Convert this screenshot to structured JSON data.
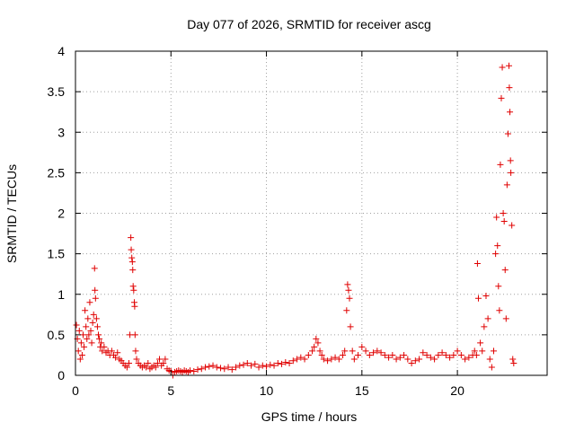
{
  "chart_data": {
    "type": "scatter",
    "title": "Day 077 of 2026, SRMTID for receiver ascg",
    "xlabel": "GPS time / hours",
    "ylabel": "SRMTID / TECUs",
    "xlim": [
      0,
      24.7
    ],
    "ylim": [
      0,
      4
    ],
    "xticks": [
      0,
      5,
      10,
      15,
      20
    ],
    "xtick_labels": [
      "0",
      "5",
      "10",
      "15",
      "20"
    ],
    "yticks": [
      0,
      0.5,
      1,
      1.5,
      2,
      2.5,
      3,
      3.5,
      4
    ],
    "ytick_labels": [
      "0",
      "0.5",
      "1",
      "1.5",
      "2",
      "2.5",
      "3",
      "3.5",
      "4"
    ],
    "grid": true,
    "marker": "+",
    "color": "#e00000",
    "series": [
      {
        "name": "ascg",
        "points": [
          [
            0.05,
            0.62
          ],
          [
            0.1,
            0.45
          ],
          [
            0.15,
            0.3
          ],
          [
            0.2,
            0.55
          ],
          [
            0.25,
            0.2
          ],
          [
            0.3,
            0.4
          ],
          [
            0.35,
            0.25
          ],
          [
            0.4,
            0.5
          ],
          [
            0.45,
            0.35
          ],
          [
            0.5,
            0.8
          ],
          [
            0.55,
            0.6
          ],
          [
            0.6,
            0.45
          ],
          [
            0.65,
            0.7
          ],
          [
            0.7,
            0.5
          ],
          [
            0.75,
            0.9
          ],
          [
            0.8,
            0.55
          ],
          [
            0.85,
            0.4
          ],
          [
            0.9,
            0.65
          ],
          [
            0.95,
            0.75
          ],
          [
            1.0,
            1.32
          ],
          [
            1.02,
            1.05
          ],
          [
            1.05,
            0.95
          ],
          [
            1.1,
            0.7
          ],
          [
            1.15,
            0.6
          ],
          [
            1.2,
            0.5
          ],
          [
            1.25,
            0.45
          ],
          [
            1.3,
            0.35
          ],
          [
            1.35,
            0.4
          ],
          [
            1.4,
            0.3
          ],
          [
            1.5,
            0.35
          ],
          [
            1.6,
            0.28
          ],
          [
            1.7,
            0.3
          ],
          [
            1.8,
            0.25
          ],
          [
            1.9,
            0.3
          ],
          [
            2.0,
            0.25
          ],
          [
            2.1,
            0.22
          ],
          [
            2.2,
            0.28
          ],
          [
            2.3,
            0.2
          ],
          [
            2.4,
            0.18
          ],
          [
            2.5,
            0.15
          ],
          [
            2.6,
            0.12
          ],
          [
            2.7,
            0.1
          ],
          [
            2.8,
            0.15
          ],
          [
            2.85,
            0.5
          ],
          [
            2.9,
            1.7
          ],
          [
            2.92,
            1.55
          ],
          [
            2.95,
            1.45
          ],
          [
            2.98,
            1.4
          ],
          [
            3.0,
            1.3
          ],
          [
            3.02,
            1.1
          ],
          [
            3.05,
            1.05
          ],
          [
            3.08,
            0.9
          ],
          [
            3.1,
            0.85
          ],
          [
            3.12,
            0.5
          ],
          [
            3.15,
            0.3
          ],
          [
            3.2,
            0.2
          ],
          [
            3.3,
            0.15
          ],
          [
            3.4,
            0.12
          ],
          [
            3.5,
            0.1
          ],
          [
            3.6,
            0.12
          ],
          [
            3.7,
            0.1
          ],
          [
            3.8,
            0.15
          ],
          [
            3.9,
            0.08
          ],
          [
            4.0,
            0.1
          ],
          [
            4.1,
            0.12
          ],
          [
            4.2,
            0.1
          ],
          [
            4.3,
            0.15
          ],
          [
            4.4,
            0.2
          ],
          [
            4.5,
            0.12
          ],
          [
            4.6,
            0.15
          ],
          [
            4.7,
            0.2
          ],
          [
            4.8,
            0.08
          ],
          [
            4.9,
            0.06
          ],
          [
            5.0,
            0.05
          ],
          [
            5.1,
            0.0
          ],
          [
            5.2,
            0.04
          ],
          [
            5.3,
            0.05
          ],
          [
            5.4,
            0.06
          ],
          [
            5.5,
            0.05
          ],
          [
            5.6,
            0.04
          ],
          [
            5.7,
            0.06
          ],
          [
            5.8,
            0.05
          ],
          [
            5.9,
            0.04
          ],
          [
            6.0,
            0.06
          ],
          [
            6.2,
            0.05
          ],
          [
            6.4,
            0.07
          ],
          [
            6.6,
            0.08
          ],
          [
            6.8,
            0.1
          ],
          [
            7.0,
            0.11
          ],
          [
            7.2,
            0.12
          ],
          [
            7.4,
            0.1
          ],
          [
            7.6,
            0.09
          ],
          [
            7.8,
            0.08
          ],
          [
            8.0,
            0.1
          ],
          [
            8.2,
            0.07
          ],
          [
            8.4,
            0.1
          ],
          [
            8.6,
            0.12
          ],
          [
            8.8,
            0.13
          ],
          [
            9.0,
            0.15
          ],
          [
            9.2,
            0.12
          ],
          [
            9.4,
            0.14
          ],
          [
            9.6,
            0.1
          ],
          [
            9.8,
            0.12
          ],
          [
            10.0,
            0.11
          ],
          [
            10.2,
            0.13
          ],
          [
            10.4,
            0.12
          ],
          [
            10.6,
            0.15
          ],
          [
            10.8,
            0.14
          ],
          [
            11.0,
            0.16
          ],
          [
            11.2,
            0.15
          ],
          [
            11.4,
            0.18
          ],
          [
            11.6,
            0.2
          ],
          [
            11.8,
            0.22
          ],
          [
            12.0,
            0.2
          ],
          [
            12.2,
            0.25
          ],
          [
            12.4,
            0.3
          ],
          [
            12.5,
            0.35
          ],
          [
            12.6,
            0.45
          ],
          [
            12.7,
            0.4
          ],
          [
            12.8,
            0.3
          ],
          [
            12.9,
            0.25
          ],
          [
            13.0,
            0.2
          ],
          [
            13.2,
            0.18
          ],
          [
            13.4,
            0.2
          ],
          [
            13.6,
            0.22
          ],
          [
            13.8,
            0.2
          ],
          [
            14.0,
            0.25
          ],
          [
            14.1,
            0.3
          ],
          [
            14.2,
            0.8
          ],
          [
            14.25,
            1.12
          ],
          [
            14.3,
            1.05
          ],
          [
            14.35,
            0.95
          ],
          [
            14.4,
            0.6
          ],
          [
            14.5,
            0.3
          ],
          [
            14.6,
            0.2
          ],
          [
            14.8,
            0.25
          ],
          [
            15.0,
            0.35
          ],
          [
            15.2,
            0.3
          ],
          [
            15.4,
            0.25
          ],
          [
            15.6,
            0.28
          ],
          [
            15.8,
            0.3
          ],
          [
            16.0,
            0.28
          ],
          [
            16.2,
            0.25
          ],
          [
            16.4,
            0.22
          ],
          [
            16.6,
            0.25
          ],
          [
            16.8,
            0.2
          ],
          [
            17.0,
            0.22
          ],
          [
            17.2,
            0.25
          ],
          [
            17.4,
            0.2
          ],
          [
            17.6,
            0.15
          ],
          [
            17.8,
            0.18
          ],
          [
            18.0,
            0.2
          ],
          [
            18.2,
            0.28
          ],
          [
            18.4,
            0.25
          ],
          [
            18.6,
            0.22
          ],
          [
            18.8,
            0.2
          ],
          [
            19.0,
            0.25
          ],
          [
            19.2,
            0.28
          ],
          [
            19.4,
            0.25
          ],
          [
            19.6,
            0.22
          ],
          [
            19.8,
            0.25
          ],
          [
            20.0,
            0.3
          ],
          [
            20.2,
            0.25
          ],
          [
            20.4,
            0.2
          ],
          [
            20.6,
            0.22
          ],
          [
            20.8,
            0.25
          ],
          [
            20.9,
            0.3
          ],
          [
            21.0,
            0.25
          ],
          [
            21.05,
            1.38
          ],
          [
            21.1,
            0.95
          ],
          [
            21.2,
            0.4
          ],
          [
            21.3,
            0.3
          ],
          [
            21.4,
            0.6
          ],
          [
            21.5,
            0.98
          ],
          [
            21.6,
            0.7
          ],
          [
            21.7,
            0.2
          ],
          [
            21.8,
            0.1
          ],
          [
            21.9,
            0.3
          ],
          [
            22.0,
            1.5
          ],
          [
            22.05,
            1.95
          ],
          [
            22.1,
            1.6
          ],
          [
            22.15,
            1.1
          ],
          [
            22.2,
            0.8
          ],
          [
            22.25,
            2.6
          ],
          [
            22.3,
            3.42
          ],
          [
            22.35,
            3.8
          ],
          [
            22.4,
            2.0
          ],
          [
            22.45,
            1.9
          ],
          [
            22.5,
            1.3
          ],
          [
            22.55,
            0.7
          ],
          [
            22.6,
            2.35
          ],
          [
            22.65,
            2.98
          ],
          [
            22.7,
            3.82
          ],
          [
            22.72,
            3.55
          ],
          [
            22.75,
            3.25
          ],
          [
            22.78,
            2.65
          ],
          [
            22.8,
            2.5
          ],
          [
            22.85,
            1.85
          ],
          [
            22.9,
            0.2
          ],
          [
            22.95,
            0.15
          ]
        ]
      }
    ]
  }
}
